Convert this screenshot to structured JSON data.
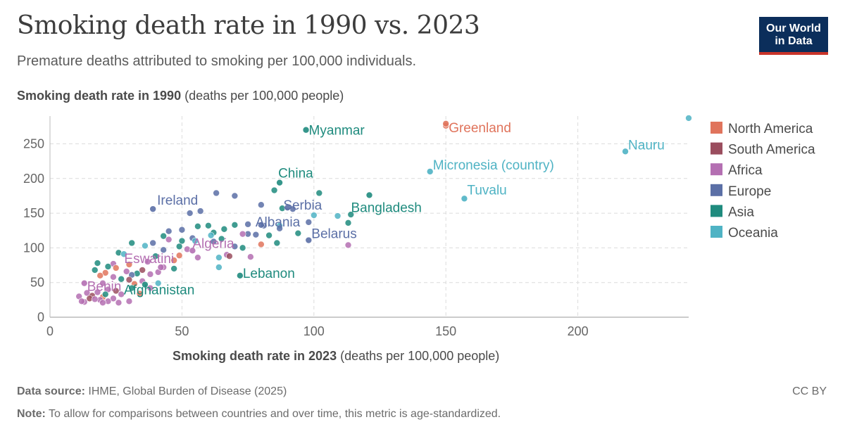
{
  "title": "Smoking death rate in 1990 vs. 2023",
  "subtitle": "Premature deaths attributed to smoking per 100,000 individuals.",
  "logo": {
    "line1": "Our World",
    "line2": "in Data"
  },
  "footer": {
    "source_label": "Data source:",
    "source_text": "IHME, Global Burden of Disease (2025)",
    "note_label": "Note:",
    "note_text": "To allow for comparisons between countries and over time, this metric is age-standardized.",
    "license": "CC BY"
  },
  "colors": {
    "North America": "#e0745c",
    "South America": "#9a4d5e",
    "Africa": "#b46fb2",
    "Europe": "#5b6fa6",
    "Asia": "#1f8b7e",
    "Oceania": "#4fb3c4"
  },
  "chart_data": {
    "type": "scatter",
    "ylabel_bold": "Smoking death rate in 1990",
    "ylabel_unit": "(deaths per 100,000 people)",
    "xlabel_bold": "Smoking death rate in 2023",
    "xlabel_unit": "(deaths per 100,000 people)",
    "xlim": [
      0,
      242
    ],
    "ylim": [
      0,
      290
    ],
    "xticks": [
      0,
      50,
      100,
      150,
      200
    ],
    "yticks": [
      0,
      50,
      100,
      150,
      200,
      250
    ],
    "grid": true,
    "legend_position": "right",
    "legend": [
      "North America",
      "South America",
      "Africa",
      "Europe",
      "Asia",
      "Oceania"
    ],
    "labeled_points": [
      {
        "name": "Myanmar",
        "region": "Asia",
        "x": 97,
        "y": 270
      },
      {
        "name": "Greenland",
        "region": "North America",
        "x": 150,
        "y": 279
      },
      {
        "name": "Nauru",
        "region": "Oceania",
        "x": 218,
        "y": 239
      },
      {
        "name": "Micronesia (country)",
        "region": "Oceania",
        "x": 144,
        "y": 210
      },
      {
        "name": "Tuvalu",
        "region": "Oceania",
        "x": 157,
        "y": 171
      },
      {
        "name": "China",
        "region": "Asia",
        "x": 87,
        "y": 194
      },
      {
        "name": "Bangladesh",
        "region": "Asia",
        "x": 121,
        "y": 176
      },
      {
        "name": "Serbia",
        "region": "Europe",
        "x": 90,
        "y": 158
      },
      {
        "name": "Ireland",
        "region": "Europe",
        "x": 39,
        "y": 156
      },
      {
        "name": "Albania",
        "region": "Europe",
        "x": 80,
        "y": 133
      },
      {
        "name": "Belarus",
        "region": "Europe",
        "x": 98,
        "y": 111
      },
      {
        "name": "Algeria",
        "region": "Africa",
        "x": 54,
        "y": 96
      },
      {
        "name": "Lebanon",
        "region": "Asia",
        "x": 72,
        "y": 60
      },
      {
        "name": "Eswatini",
        "region": "Africa",
        "x": 42,
        "y": 72
      },
      {
        "name": "Afghanistan",
        "region": "Asia",
        "x": 36,
        "y": 47
      },
      {
        "name": "Benin",
        "region": "Africa",
        "x": 13,
        "y": 49
      }
    ],
    "points": [
      {
        "region": "Oceania",
        "x": 242,
        "y": 287
      },
      {
        "region": "North America",
        "x": 150,
        "y": 276
      },
      {
        "region": "Asia",
        "x": 102,
        "y": 179
      },
      {
        "region": "Europe",
        "x": 63,
        "y": 179
      },
      {
        "region": "Europe",
        "x": 70,
        "y": 175
      },
      {
        "region": "Asia",
        "x": 85,
        "y": 183
      },
      {
        "region": "Europe",
        "x": 80,
        "y": 162
      },
      {
        "region": "Asia",
        "x": 88,
        "y": 157
      },
      {
        "region": "Europe",
        "x": 92,
        "y": 156
      },
      {
        "region": "Europe",
        "x": 57,
        "y": 153
      },
      {
        "region": "Europe",
        "x": 53,
        "y": 150
      },
      {
        "region": "Asia",
        "x": 114,
        "y": 148
      },
      {
        "region": "Oceania",
        "x": 100,
        "y": 147
      },
      {
        "region": "Oceania",
        "x": 109,
        "y": 146
      },
      {
        "region": "Asia",
        "x": 113,
        "y": 136
      },
      {
        "region": "Europe",
        "x": 98,
        "y": 137
      },
      {
        "region": "Europe",
        "x": 75,
        "y": 134
      },
      {
        "region": "Europe",
        "x": 81,
        "y": 132
      },
      {
        "region": "Asia",
        "x": 70,
        "y": 133
      },
      {
        "region": "Oceania",
        "x": 87,
        "y": 132
      },
      {
        "region": "Asia",
        "x": 60,
        "y": 132
      },
      {
        "region": "Asia",
        "x": 56,
        "y": 131
      },
      {
        "region": "Europe",
        "x": 50,
        "y": 126
      },
      {
        "region": "Asia",
        "x": 66,
        "y": 127
      },
      {
        "region": "Europe",
        "x": 45,
        "y": 124
      },
      {
        "region": "Asia",
        "x": 62,
        "y": 122
      },
      {
        "region": "Europe",
        "x": 75,
        "y": 120
      },
      {
        "region": "Africa",
        "x": 73,
        "y": 120
      },
      {
        "region": "Asia",
        "x": 94,
        "y": 121
      },
      {
        "region": "Asia",
        "x": 83,
        "y": 118
      },
      {
        "region": "Europe",
        "x": 78,
        "y": 119
      },
      {
        "region": "Asia",
        "x": 43,
        "y": 117
      },
      {
        "region": "Africa",
        "x": 45,
        "y": 112
      },
      {
        "region": "Europe",
        "x": 54,
        "y": 114
      },
      {
        "region": "Asia",
        "x": 65,
        "y": 113
      },
      {
        "region": "Oceania",
        "x": 61,
        "y": 118
      },
      {
        "region": "Asia",
        "x": 50,
        "y": 110
      },
      {
        "region": "Europe",
        "x": 62,
        "y": 109
      },
      {
        "region": "Asia",
        "x": 86,
        "y": 107
      },
      {
        "region": "North America",
        "x": 80,
        "y": 105
      },
      {
        "region": "Africa",
        "x": 113,
        "y": 104
      },
      {
        "region": "Europe",
        "x": 39,
        "y": 107
      },
      {
        "region": "Asia",
        "x": 31,
        "y": 107
      },
      {
        "region": "Oceania",
        "x": 36,
        "y": 103
      },
      {
        "region": "Asia",
        "x": 49,
        "y": 102
      },
      {
        "region": "Europe",
        "x": 70,
        "y": 102
      },
      {
        "region": "Asia",
        "x": 73,
        "y": 100
      },
      {
        "region": "Africa",
        "x": 52,
        "y": 98
      },
      {
        "region": "Europe",
        "x": 43,
        "y": 97
      },
      {
        "region": "Asia",
        "x": 26,
        "y": 93
      },
      {
        "region": "Oceania",
        "x": 28,
        "y": 91
      },
      {
        "region": "Africa",
        "x": 67,
        "y": 90
      },
      {
        "region": "North America",
        "x": 49,
        "y": 89
      },
      {
        "region": "South America",
        "x": 68,
        "y": 88
      },
      {
        "region": "Africa",
        "x": 76,
        "y": 87
      },
      {
        "region": "Oceania",
        "x": 64,
        "y": 86
      },
      {
        "region": "Africa",
        "x": 56,
        "y": 86
      },
      {
        "region": "North America",
        "x": 47,
        "y": 82
      },
      {
        "region": "Africa",
        "x": 37,
        "y": 80
      },
      {
        "region": "Asia",
        "x": 18,
        "y": 78
      },
      {
        "region": "Africa",
        "x": 24,
        "y": 77
      },
      {
        "region": "North America",
        "x": 30,
        "y": 76
      },
      {
        "region": "Oceania",
        "x": 64,
        "y": 72
      },
      {
        "region": "Asia",
        "x": 22,
        "y": 73
      },
      {
        "region": "Africa",
        "x": 43,
        "y": 72
      },
      {
        "region": "North America",
        "x": 25,
        "y": 71
      },
      {
        "region": "Asia",
        "x": 17,
        "y": 68
      },
      {
        "region": "South America",
        "x": 35,
        "y": 68
      },
      {
        "region": "Africa",
        "x": 29,
        "y": 66
      },
      {
        "region": "North America",
        "x": 21,
        "y": 64
      },
      {
        "region": "Asia",
        "x": 33,
        "y": 63
      },
      {
        "region": "Africa",
        "x": 38,
        "y": 62
      },
      {
        "region": "Europe",
        "x": 31,
        "y": 61
      },
      {
        "region": "North America",
        "x": 19,
        "y": 60
      },
      {
        "region": "Africa",
        "x": 24,
        "y": 58
      },
      {
        "region": "Asia",
        "x": 27,
        "y": 55
      },
      {
        "region": "South America",
        "x": 30,
        "y": 54
      },
      {
        "region": "Africa",
        "x": 35,
        "y": 52
      },
      {
        "region": "Africa",
        "x": 20,
        "y": 49
      },
      {
        "region": "North America",
        "x": 32,
        "y": 48
      },
      {
        "region": "Asia",
        "x": 31,
        "y": 42
      },
      {
        "region": "Africa",
        "x": 38,
        "y": 42
      },
      {
        "region": "Africa",
        "x": 22,
        "y": 40
      },
      {
        "region": "South America",
        "x": 25,
        "y": 38
      },
      {
        "region": "Africa",
        "x": 18,
        "y": 36
      },
      {
        "region": "Africa",
        "x": 14,
        "y": 35
      },
      {
        "region": "North America",
        "x": 34,
        "y": 34
      },
      {
        "region": "Africa",
        "x": 27,
        "y": 33
      },
      {
        "region": "South America",
        "x": 16,
        "y": 31
      },
      {
        "region": "Africa",
        "x": 11,
        "y": 30
      },
      {
        "region": "North America",
        "x": 20,
        "y": 29
      },
      {
        "region": "Africa",
        "x": 24,
        "y": 27
      },
      {
        "region": "South America",
        "x": 15,
        "y": 27
      },
      {
        "region": "Africa",
        "x": 19,
        "y": 25
      },
      {
        "region": "Africa",
        "x": 22,
        "y": 23
      },
      {
        "region": "Africa",
        "x": 30,
        "y": 23
      },
      {
        "region": "Africa",
        "x": 13,
        "y": 22
      },
      {
        "region": "Africa",
        "x": 20,
        "y": 21
      },
      {
        "region": "Africa",
        "x": 26,
        "y": 21
      },
      {
        "region": "Africa",
        "x": 12,
        "y": 23
      },
      {
        "region": "Africa",
        "x": 17,
        "y": 26
      },
      {
        "region": "Asia",
        "x": 21,
        "y": 33
      },
      {
        "region": "Oceania",
        "x": 41,
        "y": 49
      },
      {
        "region": "Africa",
        "x": 41,
        "y": 65
      },
      {
        "region": "Asia",
        "x": 47,
        "y": 70
      },
      {
        "region": "Asia",
        "x": 40,
        "y": 88
      },
      {
        "region": "Oceania",
        "x": 55,
        "y": 110
      },
      {
        "region": "Europe",
        "x": 87,
        "y": 128
      }
    ]
  }
}
